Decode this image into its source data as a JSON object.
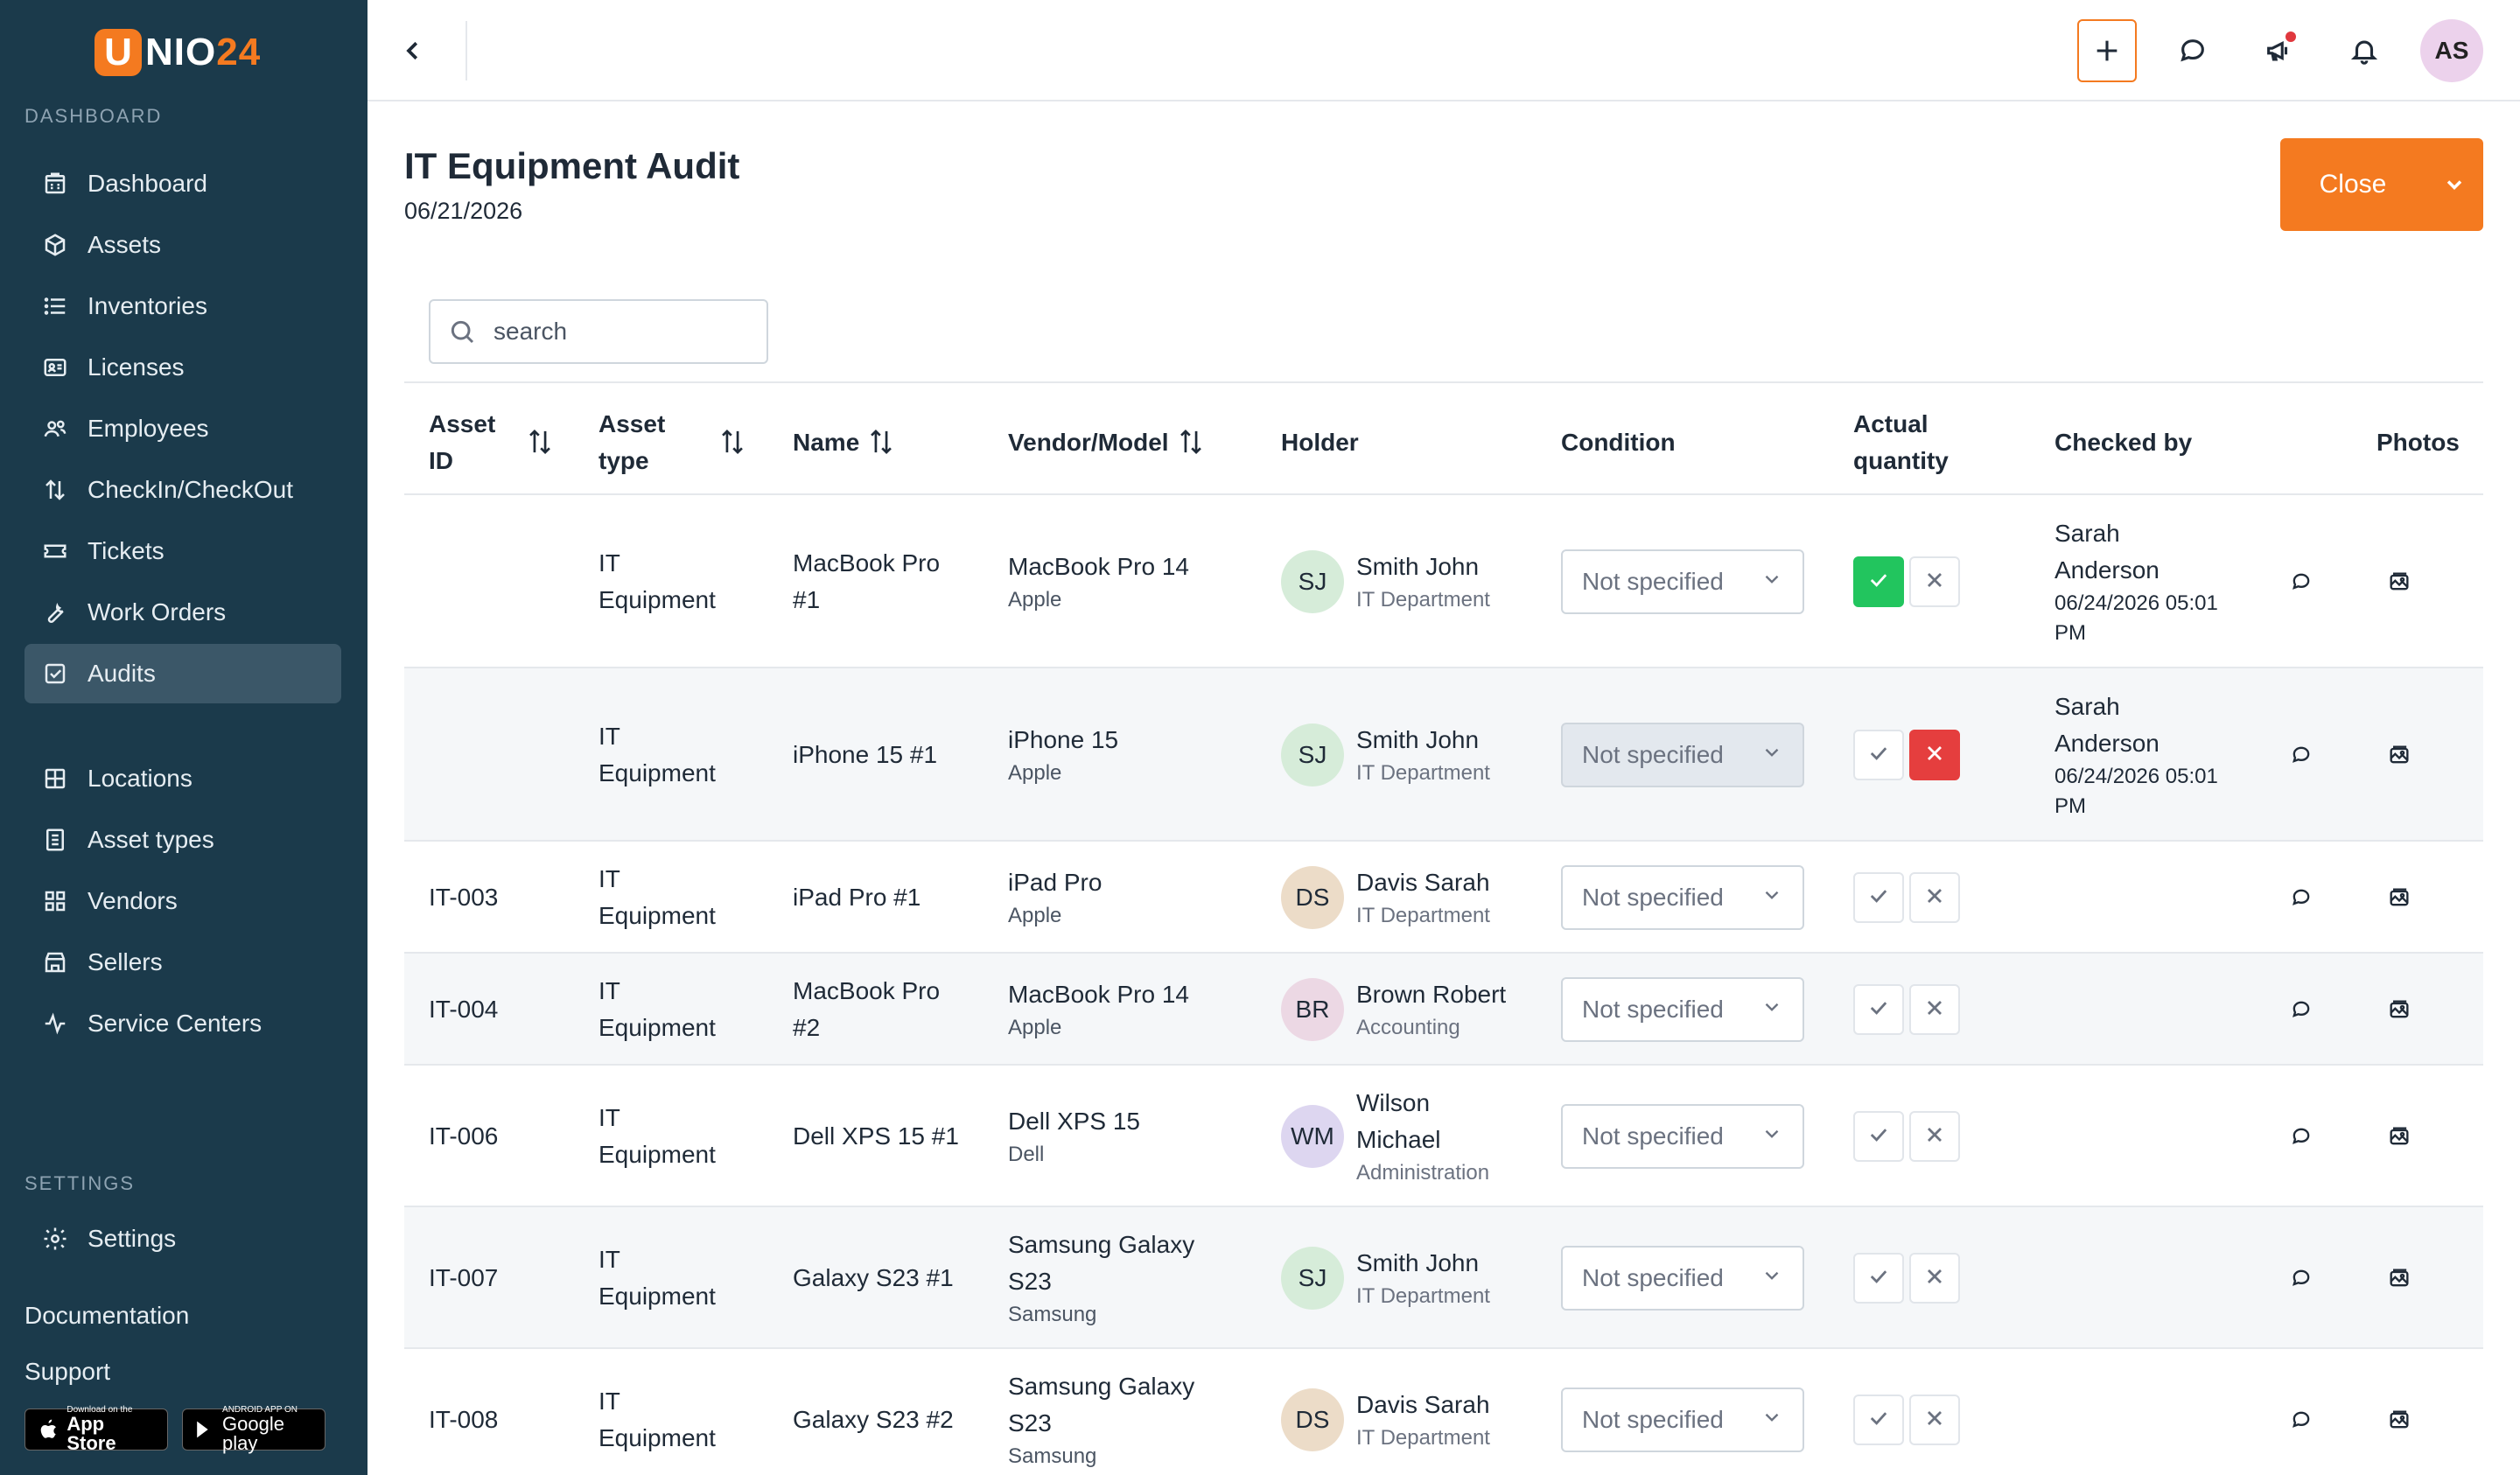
{
  "brand": {
    "logo_letter": "U",
    "logo_main": "NIO",
    "logo_suffix": "24",
    "accent": "#f47a20",
    "sidebar_bg": "#1b3a4b"
  },
  "sidebar": {
    "section_dashboard": "DASHBOARD",
    "items": [
      {
        "label": "Dashboard",
        "icon": "building-icon"
      },
      {
        "label": "Assets",
        "icon": "box-icon"
      },
      {
        "label": "Inventories",
        "icon": "list-icon"
      },
      {
        "label": "Licenses",
        "icon": "id-card-icon"
      },
      {
        "label": "Employees",
        "icon": "users-icon"
      },
      {
        "label": "CheckIn/CheckOut",
        "icon": "arrows-updown-icon"
      },
      {
        "label": "Tickets",
        "icon": "ticket-icon"
      },
      {
        "label": "Work Orders",
        "icon": "wrench-icon"
      },
      {
        "label": "Audits",
        "icon": "checkbox-icon",
        "active": true
      },
      {
        "label": "Locations",
        "icon": "grid-icon"
      },
      {
        "label": "Asset types",
        "icon": "document-icon"
      },
      {
        "label": "Vendors",
        "icon": "apps-icon"
      },
      {
        "label": "Sellers",
        "icon": "store-icon"
      },
      {
        "label": "Service Centers",
        "icon": "activity-icon"
      }
    ],
    "section_settings": "SETTINGS",
    "settings_label": "Settings",
    "documentation": "Documentation",
    "support": "Support",
    "app_store_small": "Download on the",
    "app_store_big": "App Store",
    "google_small": "ANDROID APP ON",
    "google_big": "Google play"
  },
  "topbar": {
    "avatar_initials": "AS",
    "icons": [
      "back-icon",
      "plus-icon",
      "chat-icon",
      "megaphone-icon",
      "bell-icon"
    ]
  },
  "page": {
    "title": "IT Equipment Audit",
    "date": "06/21/2026",
    "close_label": "Close"
  },
  "search": {
    "placeholder": "search",
    "value": ""
  },
  "table": {
    "headers": {
      "asset_id": [
        "Asset",
        "ID"
      ],
      "asset_type": [
        "Asset",
        "type"
      ],
      "name": "Name",
      "vendor_model": "Vendor/Model",
      "holder": "Holder",
      "condition": "Condition",
      "actual_quantity": [
        "Actual",
        "quantity"
      ],
      "checked_by": "Checked by",
      "photos": "Photos"
    },
    "rows": [
      {
        "asset_id": "",
        "type": [
          "IT",
          "Equipment"
        ],
        "name": [
          "MacBook Pro",
          "#1"
        ],
        "model": [
          "MacBook Pro 14"
        ],
        "vendor": "Apple",
        "initials": "SJ",
        "avatar_color": "#d6ecd9",
        "holder": [
          "Smith John"
        ],
        "dept": "IT Department",
        "condition": "Not specified",
        "quantity_state": "confirmed",
        "checked_by": [
          "Sarah",
          "Anderson"
        ],
        "checked_at": [
          "06/24/2026 05:01",
          "PM"
        ]
      },
      {
        "asset_id": "",
        "type": [
          "IT",
          "Equipment"
        ],
        "name": [
          "iPhone 15 #1"
        ],
        "model": [
          "iPhone 15"
        ],
        "vendor": "Apple",
        "initials": "SJ",
        "avatar_color": "#d6ecd9",
        "holder": [
          "Smith John"
        ],
        "dept": "IT Department",
        "condition": "Not specified",
        "quantity_state": "rejected",
        "checked_by": [
          "Sarah",
          "Anderson"
        ],
        "checked_at": [
          "06/24/2026 05:01",
          "PM"
        ]
      },
      {
        "asset_id": "IT-003",
        "type": [
          "IT",
          "Equipment"
        ],
        "name": [
          "iPad Pro #1"
        ],
        "model": [
          "iPad Pro"
        ],
        "vendor": "Apple",
        "initials": "DS",
        "avatar_color": "#ecdcc8",
        "holder": [
          "Davis Sarah"
        ],
        "dept": "IT Department",
        "condition": "Not specified",
        "quantity_state": "none",
        "checked_by": [],
        "checked_at": []
      },
      {
        "asset_id": "IT-004",
        "type": [
          "IT",
          "Equipment"
        ],
        "name": [
          "MacBook Pro",
          "#2"
        ],
        "model": [
          "MacBook Pro 14"
        ],
        "vendor": "Apple",
        "initials": "BR",
        "avatar_color": "#ecd8e4",
        "holder": [
          "Brown Robert"
        ],
        "dept": "Accounting",
        "condition": "Not specified",
        "quantity_state": "none",
        "checked_by": [],
        "checked_at": []
      },
      {
        "asset_id": "IT-006",
        "type": [
          "IT",
          "Equipment"
        ],
        "name": [
          "Dell XPS 15 #1"
        ],
        "model": [
          "Dell XPS 15"
        ],
        "vendor": "Dell",
        "initials": "WM",
        "avatar_color": "#ddd6f0",
        "holder": [
          "Wilson",
          "Michael"
        ],
        "dept": "Administration",
        "condition": "Not specified",
        "quantity_state": "none",
        "checked_by": [],
        "checked_at": []
      },
      {
        "asset_id": "IT-007",
        "type": [
          "IT",
          "Equipment"
        ],
        "name": [
          "Galaxy S23 #1"
        ],
        "model": [
          "Samsung Galaxy",
          "S23"
        ],
        "vendor": "Samsung",
        "initials": "SJ",
        "avatar_color": "#d6ecd9",
        "holder": [
          "Smith John"
        ],
        "dept": "IT Department",
        "condition": "Not specified",
        "quantity_state": "none",
        "checked_by": [],
        "checked_at": []
      },
      {
        "asset_id": "IT-008",
        "type": [
          "IT",
          "Equipment"
        ],
        "name": [
          "Galaxy S23 #2"
        ],
        "model": [
          "Samsung Galaxy",
          "S23"
        ],
        "vendor": "Samsung",
        "initials": "DS",
        "avatar_color": "#ecdcc8",
        "holder": [
          "Davis Sarah"
        ],
        "dept": "IT Department",
        "condition": "Not specified",
        "quantity_state": "none",
        "checked_by": [],
        "checked_at": []
      }
    ]
  }
}
